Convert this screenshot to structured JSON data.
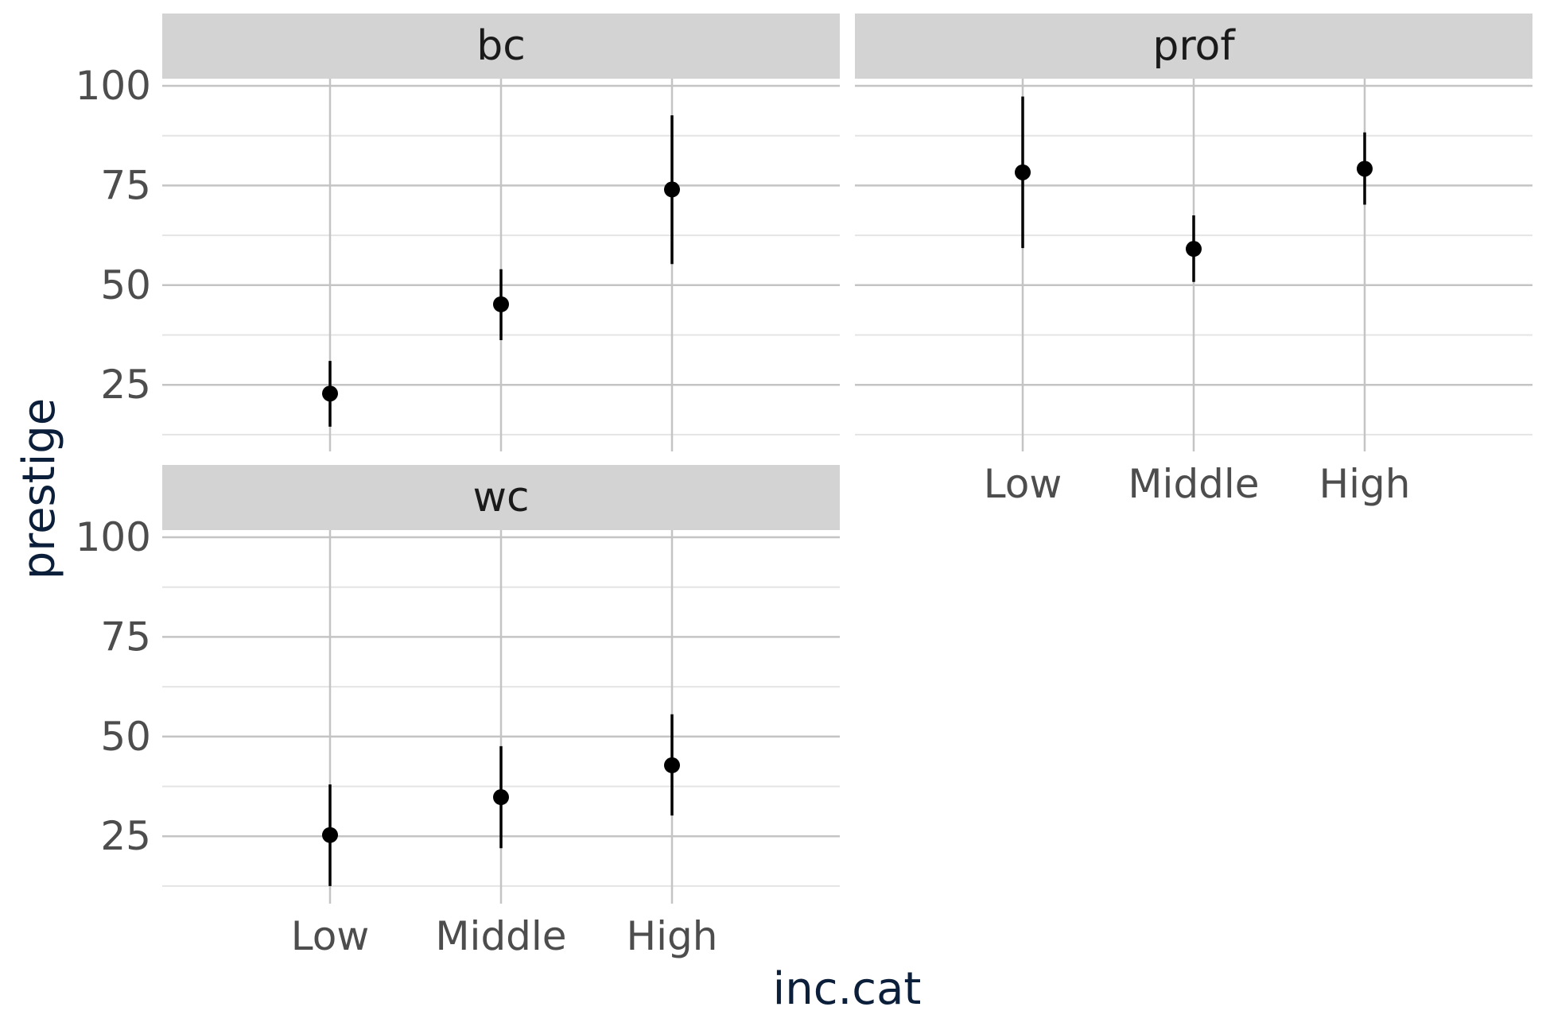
{
  "chart_data": {
    "type": "scatter",
    "geometry": "pointrange",
    "xlabel": "inc.cat",
    "ylabel": "prestige",
    "categories": [
      "Low",
      "Middle",
      "High"
    ],
    "yticks": [
      25,
      50,
      75,
      100
    ],
    "ylim": [
      10,
      118
    ],
    "grid": true,
    "facets": [
      {
        "label": "bc",
        "points": [
          {
            "x": "Low",
            "y": 22.8,
            "ymin": 14.5,
            "ymax": 31.0
          },
          {
            "x": "Middle",
            "y": 45.2,
            "ymin": 36.2,
            "ymax": 54.0
          },
          {
            "x": "High",
            "y": 74.0,
            "ymin": 55.3,
            "ymax": 92.6
          }
        ]
      },
      {
        "label": "prof",
        "points": [
          {
            "x": "Low",
            "y": 78.3,
            "ymin": 59.3,
            "ymax": 97.3
          },
          {
            "x": "Middle",
            "y": 59.1,
            "ymin": 50.8,
            "ymax": 67.5
          },
          {
            "x": "High",
            "y": 79.2,
            "ymin": 70.2,
            "ymax": 88.3
          }
        ]
      },
      {
        "label": "wc",
        "points": [
          {
            "x": "Low",
            "y": 25.3,
            "ymin": 12.5,
            "ymax": 38.0
          },
          {
            "x": "Middle",
            "y": 34.8,
            "ymin": 22.0,
            "ymax": 47.6
          },
          {
            "x": "High",
            "y": 42.8,
            "ymin": 30.2,
            "ymax": 55.6
          }
        ]
      }
    ]
  }
}
